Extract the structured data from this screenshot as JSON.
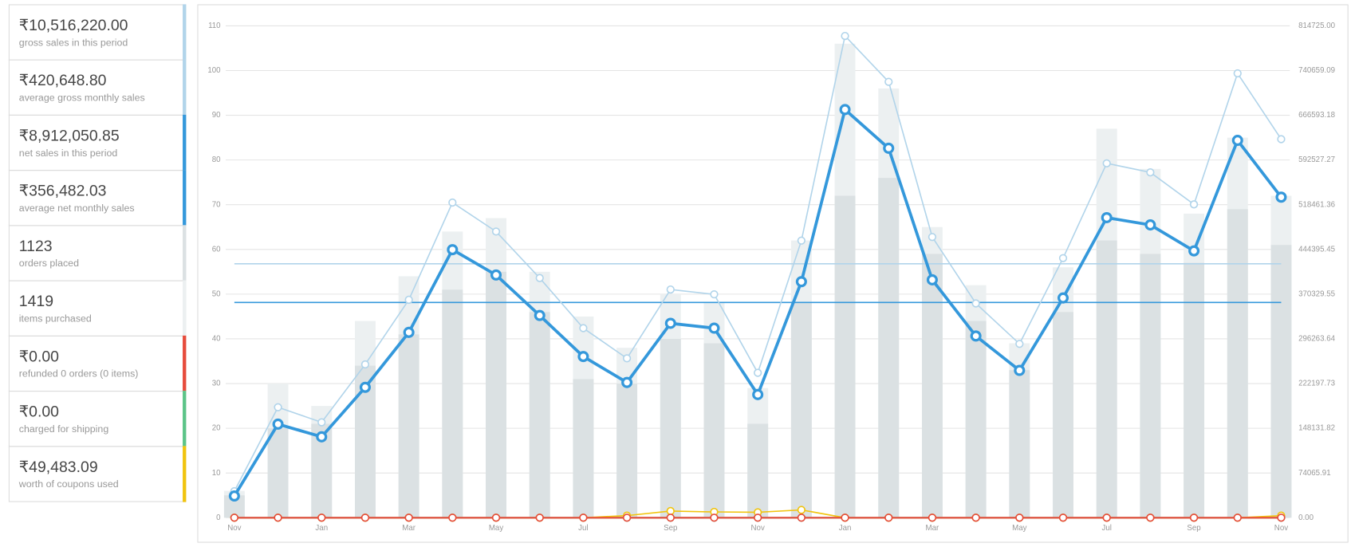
{
  "stats": [
    {
      "amount": "₹10,516,220.00",
      "caption": "gross sales in this period",
      "color": "#b1d4ea"
    },
    {
      "amount": "₹420,648.80",
      "caption": "average gross monthly sales",
      "color": "#b1d4ea",
      "value": 420648.8
    },
    {
      "amount": "₹8,912,050.85",
      "caption": "net sales in this period",
      "color": "#3498db"
    },
    {
      "amount": "₹356,482.03",
      "caption": "average net monthly sales",
      "color": "#3498db",
      "value": 356482.03
    },
    {
      "amount": "1123",
      "caption": "orders placed",
      "color": "#dbe1e3"
    },
    {
      "amount": "1419",
      "caption": "items purchased",
      "color": "#ecf0f1"
    },
    {
      "amount": "₹0.00",
      "caption": "refunded 0 orders (0 items)",
      "color": "#e74c3c"
    },
    {
      "amount": "₹0.00",
      "caption": "charged for shipping",
      "color": "#5cc488"
    },
    {
      "amount": "₹49,483.09",
      "caption": "worth of coupons used",
      "color": "#f1c40f"
    }
  ],
  "chart_data": {
    "type": "bar-line",
    "categories": [
      "Nov",
      null,
      "Jan",
      null,
      "Mar",
      null,
      "May",
      null,
      "Jul",
      null,
      "Sep",
      null,
      "Nov",
      null,
      "Jan",
      null,
      "Mar",
      null,
      "May",
      null,
      "Jul",
      null,
      "Sep",
      null,
      "Nov"
    ],
    "ylim": [
      0,
      110
    ],
    "yticks": [
      0,
      10,
      20,
      30,
      40,
      50,
      60,
      70,
      80,
      90,
      100,
      110
    ],
    "y2lim": [
      0,
      814725
    ],
    "y2ticks": [
      {
        "value": 0,
        "label": "0.00"
      },
      {
        "value": 74065.91,
        "label": "74065.91"
      },
      {
        "value": 148131.82,
        "label": "148131.82"
      },
      {
        "value": 222197.73,
        "label": "222197.73"
      },
      {
        "value": 296263.64,
        "label": "296263.64"
      },
      {
        "value": 370329.55,
        "label": "370329.55"
      },
      {
        "value": 444395.45,
        "label": "444395.45"
      },
      {
        "value": 518461.36,
        "label": "518461.36"
      },
      {
        "value": 592527.27,
        "label": "592527.27"
      },
      {
        "value": 666593.18,
        "label": "666593.18"
      },
      {
        "value": 740659.09,
        "label": "740659.09"
      },
      {
        "value": 814725,
        "label": "814725.00"
      }
    ],
    "grid": true,
    "series": [
      {
        "type": "bar",
        "color": "#ecf0f1",
        "values": [
          6,
          30,
          25,
          44,
          54,
          64,
          67,
          55,
          45,
          38,
          50,
          48,
          29,
          62,
          106,
          96,
          65,
          52,
          39,
          56,
          87,
          78,
          68,
          85,
          72
        ]
      },
      {
        "type": "bar",
        "color": "#dbe1e3",
        "values": [
          5,
          20,
          21,
          34,
          41,
          51,
          55,
          46,
          31,
          30,
          40,
          39,
          21,
          48,
          72,
          76,
          59,
          44,
          33,
          46,
          62,
          59,
          57,
          69,
          61
        ]
      },
      {
        "type": "line",
        "axis": "y2",
        "color": "#b1d4ea",
        "width": 1.5,
        "values": [
          44000,
          183000,
          158000,
          254000,
          361000,
          522000,
          474000,
          397000,
          314000,
          264000,
          378000,
          370000,
          240000,
          459000,
          798000,
          722000,
          465000,
          355000,
          288000,
          430000,
          587000,
          572000,
          519000,
          736000,
          627000
        ]
      },
      {
        "type": "line",
        "axis": "y2",
        "color": "#3498db",
        "width": 3.5,
        "values": [
          36000,
          155000,
          134000,
          216000,
          307000,
          444000,
          402000,
          335000,
          267000,
          224000,
          322000,
          314000,
          204000,
          391000,
          676000,
          612000,
          394000,
          301000,
          244000,
          364000,
          497000,
          485000,
          442000,
          625000,
          531000
        ]
      },
      {
        "type": "line",
        "axis": "y2",
        "color": "#5cc488",
        "width": 2,
        "values": [
          0,
          0,
          0,
          0,
          0,
          0,
          0,
          0,
          0,
          0,
          0,
          0,
          0,
          0,
          0,
          0,
          0,
          0,
          0,
          0,
          0,
          0,
          0,
          0,
          0
        ]
      },
      {
        "type": "line",
        "axis": "y2",
        "color": "#f1c40f",
        "width": 1.5,
        "values": [
          0,
          0,
          0,
          0,
          0,
          0,
          0,
          0,
          0,
          3500,
          11000,
          9600,
          9000,
          12900,
          0,
          0,
          0,
          0,
          0,
          0,
          0,
          0,
          0,
          0,
          3483
        ]
      },
      {
        "type": "line",
        "axis": "y2",
        "color": "#e74c3c",
        "width": 2,
        "values": [
          0,
          0,
          0,
          0,
          0,
          0,
          0,
          0,
          0,
          0,
          0,
          0,
          0,
          0,
          0,
          0,
          0,
          0,
          0,
          0,
          0,
          0,
          0,
          0,
          0
        ]
      }
    ]
  }
}
